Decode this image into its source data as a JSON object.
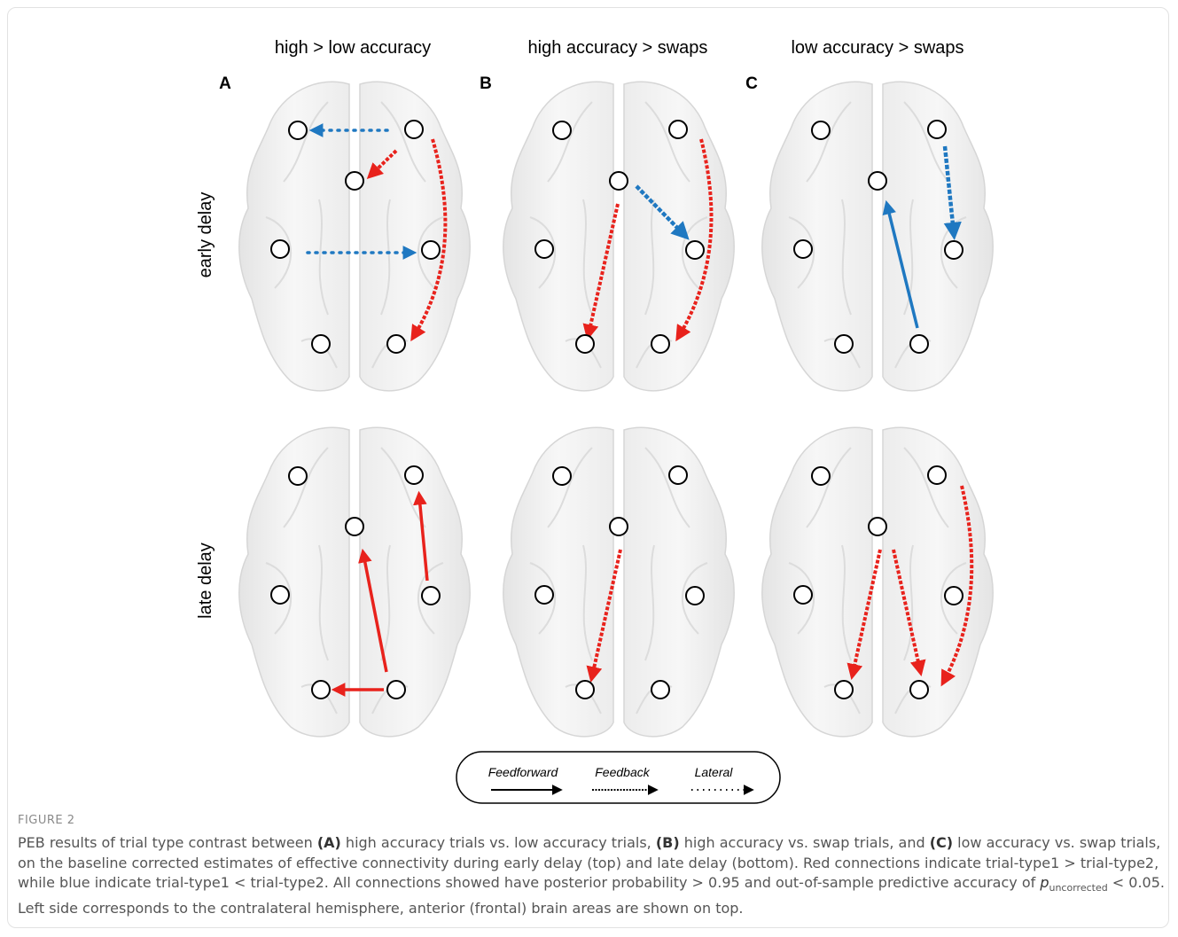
{
  "figure": {
    "column_headers": [
      "high > low accuracy",
      "high accuracy > swaps",
      "low accuracy > swaps"
    ],
    "panel_labels": [
      "A",
      "B",
      "C"
    ],
    "row_labels": [
      "early delay",
      "late delay"
    ],
    "legend": [
      "Feedforward",
      "Feedback",
      "Lateral"
    ],
    "label": "FIGURE 2",
    "caption": [
      "PEB results of trial type contrast between ",
      "(A)",
      " high accuracy trials vs. low accuracy trials, ",
      "(B)",
      " high accuracy vs. swap trials, and ",
      "(C)",
      " low accuracy vs. swap trials, on the baseline corrected estimates of effective connectivity during early delay (top) and late delay (bottom). Red connections indicate trial-type1 > trial-type2, while blue indicate trial-type1 < trial-type2. All connections showed have posterior probability > 0.95 and out-of-sample predictive accuracy of ",
      "p",
      "uncorrected",
      " < 0.05. Left side corresponds to the contralateral hemisphere, anterior (frontal) brain areas are shown on top."
    ]
  }
}
